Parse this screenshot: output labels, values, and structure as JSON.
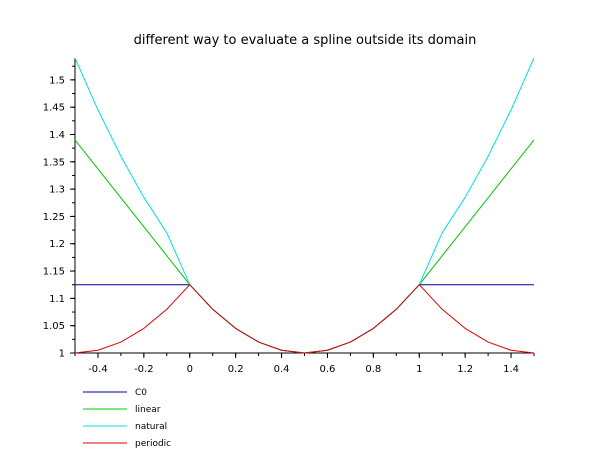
{
  "chart_data": {
    "type": "line",
    "title": "different way to evaluate a spline outside its domain",
    "xlabel": "",
    "ylabel": "",
    "xlim": [
      -0.5,
      1.5
    ],
    "ylim": [
      1.0,
      1.54
    ],
    "grid": false,
    "legend_position": "bottom-left",
    "xticks": [
      -0.4,
      -0.2,
      0,
      0.2,
      0.4,
      0.6,
      0.8,
      1,
      1.2,
      1.4
    ],
    "xtick_labels": [
      "-0.4",
      "-0.2",
      "0",
      "0.2",
      "0.4",
      "0.6",
      "0.8",
      "1",
      "1.2",
      "1.4"
    ],
    "yticks": [
      1,
      1.05,
      1.1,
      1.15,
      1.2,
      1.25,
      1.3,
      1.35,
      1.4,
      1.45,
      1.5
    ],
    "ytick_labels": [
      "1",
      "1.05",
      "1.1",
      "1.15",
      "1.2",
      "1.25",
      "1.3",
      "1.35",
      "1.4",
      "1.45",
      "1.5"
    ],
    "series": [
      {
        "name": "C0",
        "color": "#0000a0",
        "x": [
          -0.5,
          0.0,
          0.1,
          0.2,
          0.3,
          0.4,
          0.5,
          0.6,
          0.7,
          0.8,
          0.9,
          1.0,
          1.5
        ],
        "y": [
          1.125,
          1.125,
          1.08,
          1.045,
          1.02,
          1.005,
          1.0,
          1.005,
          1.02,
          1.045,
          1.08,
          1.125,
          1.125
        ]
      },
      {
        "name": "linear",
        "color": "#00c800",
        "x": [
          -0.5,
          0.0,
          0.1,
          0.2,
          0.3,
          0.4,
          0.5,
          0.6,
          0.7,
          0.8,
          0.9,
          1.0,
          1.5
        ],
        "y": [
          1.39,
          1.125,
          1.08,
          1.045,
          1.02,
          1.005,
          1.0,
          1.005,
          1.02,
          1.045,
          1.08,
          1.125,
          1.39
        ]
      },
      {
        "name": "natural",
        "color": "#00e0e0",
        "x": [
          -0.5,
          -0.4,
          -0.3,
          -0.2,
          -0.1,
          0.0,
          0.1,
          0.2,
          0.3,
          0.4,
          0.5,
          0.6,
          0.7,
          0.8,
          0.9,
          1.0,
          1.1,
          1.2,
          1.3,
          1.4,
          1.5
        ],
        "y": [
          1.54,
          1.445,
          1.36,
          1.285,
          1.22,
          1.125,
          1.08,
          1.045,
          1.02,
          1.005,
          1.0,
          1.005,
          1.02,
          1.045,
          1.08,
          1.125,
          1.22,
          1.285,
          1.36,
          1.445,
          1.54
        ]
      },
      {
        "name": "periodic",
        "color": "#e00000",
        "x": [
          -0.5,
          -0.4,
          -0.3,
          -0.2,
          -0.1,
          0.0,
          0.1,
          0.2,
          0.3,
          0.4,
          0.5,
          0.6,
          0.7,
          0.8,
          0.9,
          1.0,
          1.1,
          1.2,
          1.3,
          1.4,
          1.5
        ],
        "y": [
          1.0,
          1.005,
          1.02,
          1.045,
          1.08,
          1.125,
          1.08,
          1.045,
          1.02,
          1.005,
          1.0,
          1.005,
          1.02,
          1.045,
          1.08,
          1.125,
          1.08,
          1.045,
          1.02,
          1.005,
          1.0
        ]
      }
    ]
  }
}
